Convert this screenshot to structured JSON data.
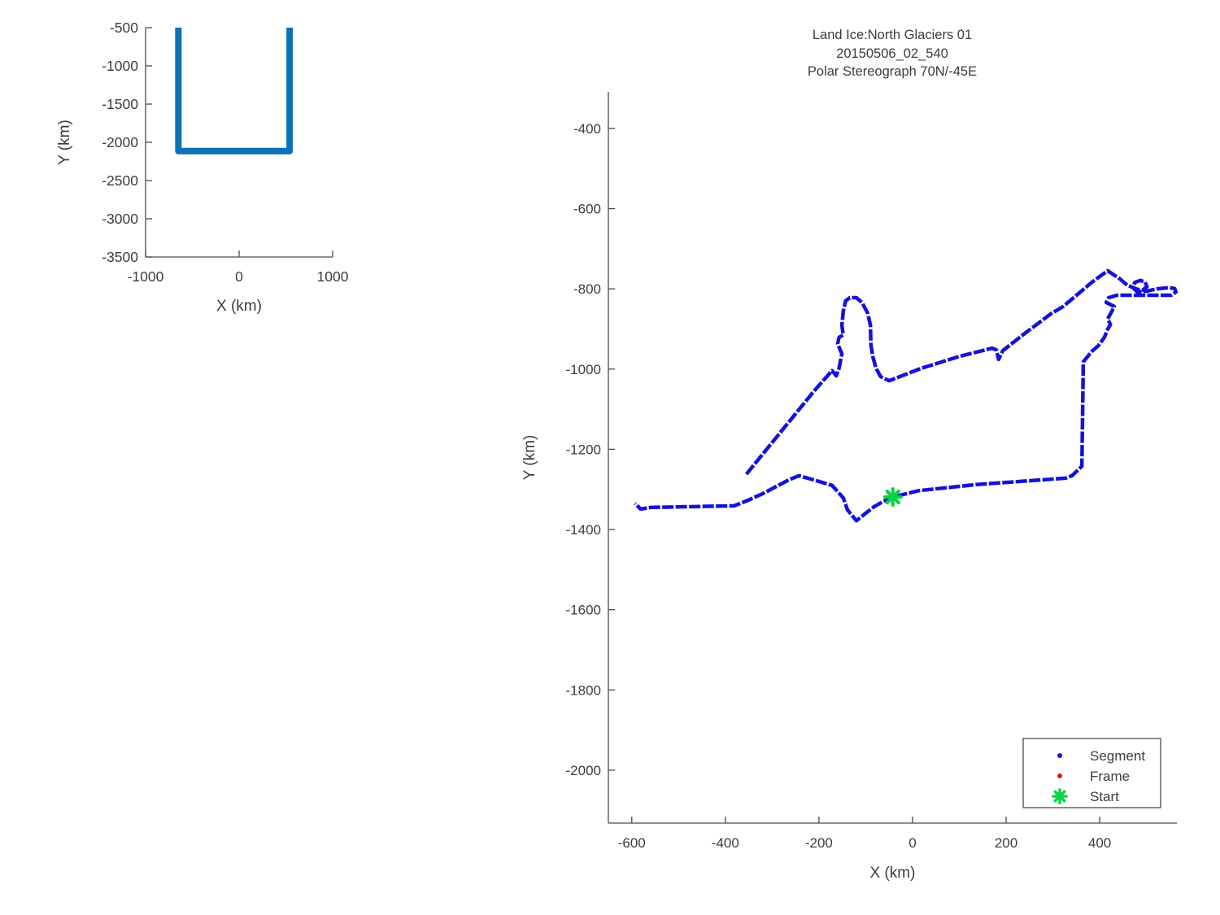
{
  "figure": {
    "background": "#ffffff",
    "text_color": "#3c3c3c",
    "spine_color": "#4a4a4a",
    "matlab_blue": "#0d72b5",
    "track_blue": "#1212dd",
    "frame_red": "#e11414",
    "start_green": "#0cd244"
  },
  "chart_data": [
    {
      "id": "overview",
      "type": "line",
      "title": "",
      "xlabel": "X (km)",
      "ylabel": "Y (km)",
      "xlim": [
        -1000,
        1000
      ],
      "ylim": [
        -3500,
        -500
      ],
      "grid": false,
      "xticks": {
        "values": [
          -1000,
          0,
          1000
        ],
        "labels": [
          "-1000",
          "0",
          "1000"
        ]
      },
      "yticks": {
        "values": [
          -500,
          -1000,
          -1500,
          -2000,
          -2500,
          -3000,
          -3500
        ],
        "labels": [
          "-500",
          "-1000",
          "-1500",
          "-2000",
          "-2500",
          "-3000",
          "-3500"
        ]
      },
      "series": [
        {
          "name": "flight-track-overview",
          "color": "#0d72b5",
          "linewidth": 8,
          "style": "solid",
          "points": [
            [
              -650,
              -500
            ],
            [
              -650,
              -2115
            ],
            [
              540,
              -2115
            ],
            [
              540,
              -500
            ]
          ]
        }
      ]
    },
    {
      "id": "detail",
      "type": "scatter",
      "title_lines": [
        "Land Ice:North Glaciers 01",
        "20150506_02_540",
        "Polar Stereograph 70N/-45E"
      ],
      "xlabel": "X (km)",
      "ylabel": "Y (km)",
      "xlim": [
        -650,
        565
      ],
      "ylim": [
        -2132,
        -309
      ],
      "grid": false,
      "xticks": {
        "values": [
          -600,
          -400,
          -200,
          0,
          200,
          400
        ],
        "labels": [
          "-600",
          "-400",
          "-200",
          "0",
          "200",
          "400"
        ]
      },
      "yticks": {
        "values": [
          -400,
          -600,
          -800,
          -1000,
          -1200,
          -1400,
          -1600,
          -1800,
          -2000
        ],
        "labels": [
          "-400",
          "-600",
          "-800",
          "-1000",
          "-1200",
          "-1400",
          "-1600",
          "-1800",
          "-2000"
        ]
      },
      "legend": {
        "position": "bottom-right",
        "entries": [
          {
            "label": "Segment",
            "marker": "dot",
            "color": "#1212dd"
          },
          {
            "label": "Frame",
            "marker": "dot",
            "color": "#e11414"
          },
          {
            "label": "Start",
            "marker": "star",
            "color": "#0cd244"
          }
        ]
      },
      "series": [
        {
          "name": "Segment",
          "color": "#1212dd",
          "linewidth": 4.5,
          "style": "dashed-dots",
          "points": [
            [
              -355,
              -1262
            ],
            [
              -212,
              -1057
            ],
            [
              -172,
              -1004
            ],
            [
              -163,
              -1017
            ],
            [
              -157,
              -998
            ],
            [
              -151,
              -962
            ],
            [
              -160,
              -937
            ],
            [
              -157,
              -921
            ],
            [
              -148,
              -915
            ],
            [
              -151,
              -891
            ],
            [
              -148,
              -856
            ],
            [
              -143,
              -830
            ],
            [
              -134,
              -822
            ],
            [
              -120,
              -822
            ],
            [
              -108,
              -834
            ],
            [
              -96,
              -860
            ],
            [
              -90,
              -891
            ],
            [
              -89,
              -937
            ],
            [
              -85,
              -968
            ],
            [
              -78,
              -998
            ],
            [
              -68,
              -1019
            ],
            [
              -50,
              -1029
            ],
            [
              19,
              -998
            ],
            [
              101,
              -968
            ],
            [
              170,
              -948
            ],
            [
              179,
              -952
            ],
            [
              184,
              -976
            ],
            [
              193,
              -954
            ],
            [
              240,
              -911
            ],
            [
              296,
              -862
            ],
            [
              322,
              -844
            ],
            [
              384,
              -783
            ],
            [
              417,
              -755
            ],
            [
              443,
              -775
            ],
            [
              459,
              -791
            ],
            [
              480,
              -801
            ],
            [
              492,
              -803
            ],
            [
              501,
              -795
            ],
            [
              497,
              -783
            ],
            [
              487,
              -779
            ],
            [
              475,
              -784
            ],
            [
              471,
              -797
            ],
            [
              480,
              -807
            ],
            [
              500,
              -806
            ],
            [
              523,
              -800
            ],
            [
              548,
              -797
            ],
            [
              560,
              -799
            ],
            [
              563,
              -808
            ],
            [
              553,
              -816
            ],
            [
              478,
              -816
            ],
            [
              437,
              -816
            ],
            [
              419,
              -822
            ],
            [
              414,
              -834
            ],
            [
              431,
              -844
            ],
            [
              426,
              -856
            ],
            [
              417,
              -875
            ],
            [
              423,
              -889
            ],
            [
              417,
              -901
            ],
            [
              410,
              -921
            ],
            [
              397,
              -942
            ],
            [
              383,
              -956
            ],
            [
              365,
              -982
            ],
            [
              362,
              -1242
            ],
            [
              341,
              -1266
            ],
            [
              327,
              -1272
            ],
            [
              136,
              -1288
            ],
            [
              14,
              -1303
            ],
            [
              -42,
              -1319
            ],
            [
              -64,
              -1331
            ],
            [
              -82,
              -1343
            ],
            [
              -104,
              -1363
            ],
            [
              -120,
              -1378
            ],
            [
              -139,
              -1351
            ],
            [
              -148,
              -1321
            ],
            [
              -172,
              -1290
            ],
            [
              -212,
              -1276
            ],
            [
              -243,
              -1266
            ],
            [
              -264,
              -1276
            ],
            [
              -290,
              -1292
            ],
            [
              -317,
              -1309
            ],
            [
              -351,
              -1327
            ],
            [
              -381,
              -1341
            ],
            [
              -560,
              -1345
            ],
            [
              -581,
              -1349
            ],
            [
              -593,
              -1335
            ]
          ]
        },
        {
          "name": "Frame",
          "color": "#e11414",
          "linewidth": 0,
          "style": "none",
          "points": []
        },
        {
          "name": "Start",
          "color": "#0cd244",
          "marker": "star",
          "size": 10,
          "points": [
            [
              -42,
              -1319
            ]
          ]
        }
      ]
    }
  ]
}
